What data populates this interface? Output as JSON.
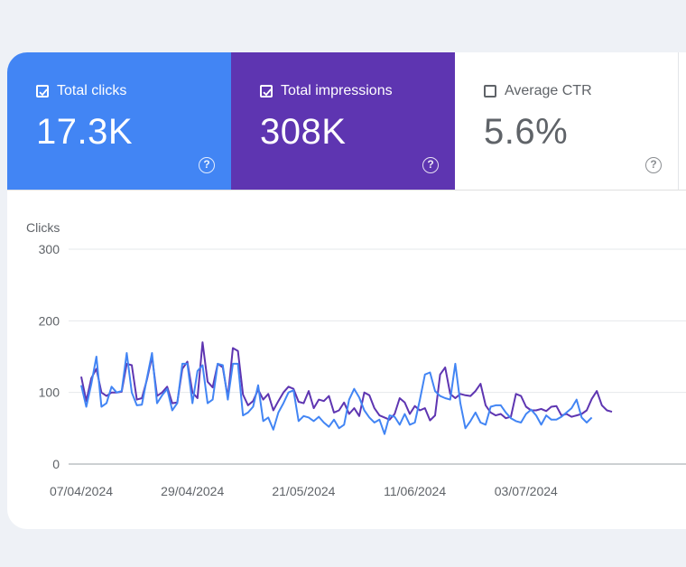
{
  "metrics": {
    "clicks": {
      "label": "Total clicks",
      "value": "17.3K",
      "checked": true,
      "color": "#4285f4"
    },
    "impressions": {
      "label": "Total impressions",
      "value": "308K",
      "checked": true,
      "color": "#5e35b1"
    },
    "ctr": {
      "label": "Average CTR",
      "value": "5.6%",
      "checked": false
    }
  },
  "help_glyph": "?",
  "chart_data": {
    "type": "line",
    "ylabel": "Clicks",
    "ylim": [
      0,
      300
    ],
    "yticks": [
      "0",
      "100",
      "200",
      "300"
    ],
    "xticks": [
      "07/04/2024",
      "29/04/2024",
      "21/05/2024",
      "11/06/2024",
      "03/07/2024"
    ],
    "grid": true,
    "series": [
      {
        "color": "#5e35b1",
        "values": [
          122,
          88,
          120,
          133,
          100,
          95,
          100,
          100,
          101,
          140,
          138,
          90,
          92,
          118,
          150,
          95,
          100,
          108,
          85,
          86,
          133,
          143,
          100,
          92,
          170,
          115,
          107,
          140,
          135,
          93,
          162,
          158,
          97,
          82,
          88,
          104,
          90,
          98,
          75,
          88,
          100,
          108,
          105,
          87,
          85,
          102,
          78,
          90,
          88,
          95,
          72,
          75,
          86,
          70,
          78,
          67,
          100,
          96,
          78,
          68,
          65,
          62,
          70,
          92,
          86,
          70,
          81,
          75,
          78,
          61,
          68,
          125,
          135,
          98,
          92,
          98,
          96,
          95,
          102,
          112,
          82,
          72,
          68,
          70,
          64,
          66,
          98,
          95,
          80,
          75,
          75,
          77,
          74,
          80,
          81,
          68,
          70,
          66,
          68,
          70,
          75,
          91,
          102,
          82,
          75,
          73
        ]
      },
      {
        "color": "#4285f4",
        "values": [
          110,
          80,
          112,
          150,
          80,
          85,
          108,
          100,
          102,
          155,
          100,
          82,
          83,
          120,
          155,
          85,
          96,
          105,
          75,
          85,
          140,
          140,
          85,
          130,
          138,
          85,
          90,
          140,
          138,
          90,
          140,
          140,
          68,
          72,
          80,
          110,
          60,
          65,
          48,
          72,
          85,
          100,
          103,
          60,
          67,
          65,
          60,
          66,
          58,
          52,
          62,
          50,
          55,
          90,
          105,
          93,
          75,
          65,
          58,
          62,
          42,
          68,
          66,
          55,
          70,
          55,
          58,
          90,
          125,
          128,
          102,
          95,
          92,
          90,
          140,
          85,
          50,
          60,
          72,
          58,
          55,
          80,
          82,
          82,
          72,
          64,
          60,
          58,
          70,
          76,
          68,
          55,
          68,
          62,
          62,
          66,
          72,
          78,
          90,
          65,
          58,
          65
        ]
      }
    ]
  }
}
